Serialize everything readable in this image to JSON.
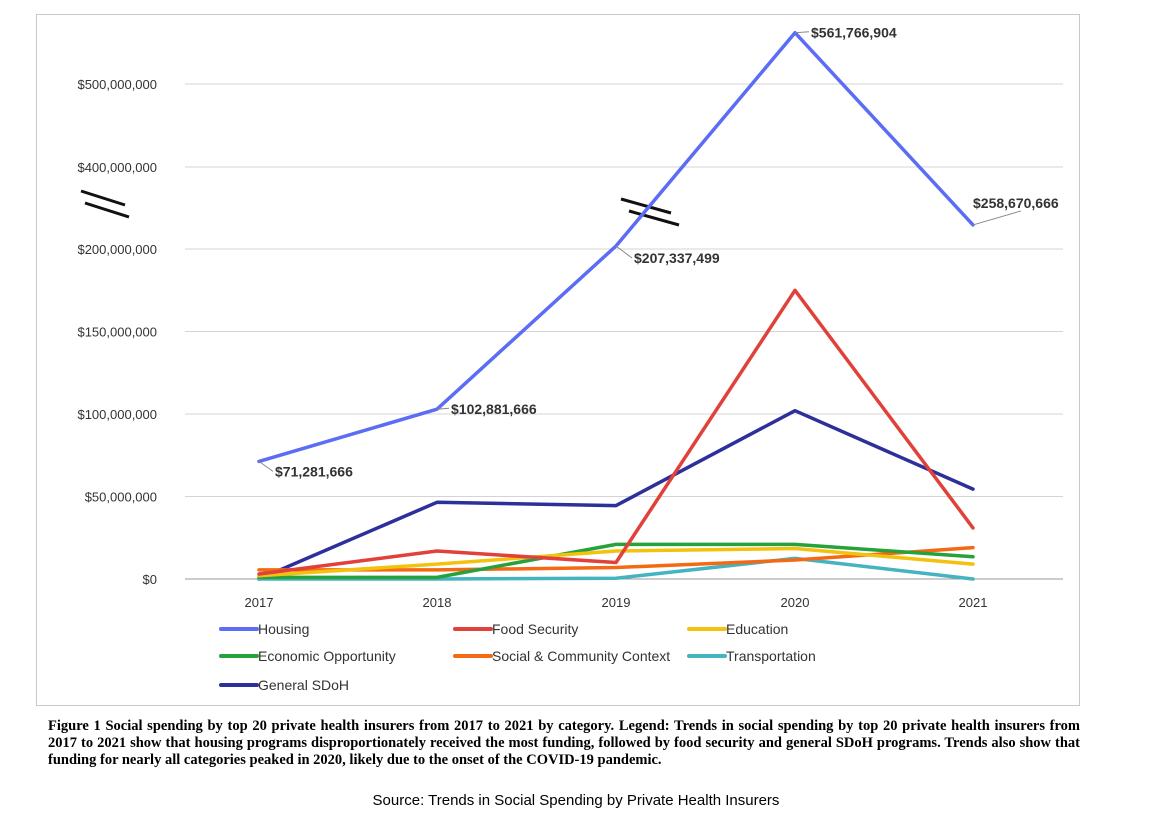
{
  "chart_data": {
    "type": "line",
    "categories": [
      "2017",
      "2018",
      "2019",
      "2020",
      "2021"
    ],
    "y_axis": {
      "ticks": [
        "$0",
        "$50,000,000",
        "$100,000,000",
        "$150,000,000",
        "$200,000,000",
        "$400,000,000",
        "$500,000,000"
      ],
      "break": "between $200,000,000 and $400,000,000"
    },
    "series": [
      {
        "name": "Housing",
        "color": "#5b6cf5",
        "values": [
          71281666,
          102881666,
          207337499,
          561766904,
          258670666
        ]
      },
      {
        "name": "Food Security",
        "color": "#e0413a",
        "values": [
          3000000,
          17000000,
          10000000,
          175000000,
          31000000
        ]
      },
      {
        "name": "Education",
        "color": "#f2c20f",
        "values": [
          2000000,
          9000000,
          17000000,
          18500000,
          9000000
        ]
      },
      {
        "name": "Economic Opportunity",
        "color": "#27a13a",
        "values": [
          1000000,
          1000000,
          21000000,
          21000000,
          13500000
        ]
      },
      {
        "name": "Social & Community Context",
        "color": "#f46a14",
        "values": [
          5500000,
          5500000,
          7000000,
          11500000,
          19000000
        ]
      },
      {
        "name": "Transportation",
        "color": "#45b3c0",
        "values": [
          0,
          0,
          500000,
          12500000,
          0
        ]
      },
      {
        "name": "General SDoH",
        "color": "#2d2f9a",
        "values": [
          0,
          46500000,
          44500000,
          102000000,
          54500000
        ]
      }
    ],
    "annotations": [
      {
        "series": "Housing",
        "category": "2017",
        "text": "$71,281,666"
      },
      {
        "series": "Housing",
        "category": "2018",
        "text": "$102,881,666"
      },
      {
        "series": "Housing",
        "category": "2019",
        "text": "$207,337,499"
      },
      {
        "series": "Housing",
        "category": "2020",
        "text": "$561,766,904"
      },
      {
        "series": "Housing",
        "category": "2021",
        "text": "$258,670,666"
      }
    ],
    "legend_position": "bottom"
  },
  "caption": "Figure 1 Social spending by top 20 private health insurers from 2017 to 2021 by category. Legend: Trends in social spending by top 20 private health insurers from 2017 to 2021 show that housing programs disproportionately received the most funding, followed by food security and general SDoH programs. Trends also show that funding for nearly all categories peaked in 2020, likely due to the onset of the COVID-19 pandemic.",
  "source": "Source: Trends in Social Spending by Private Health Insurers"
}
